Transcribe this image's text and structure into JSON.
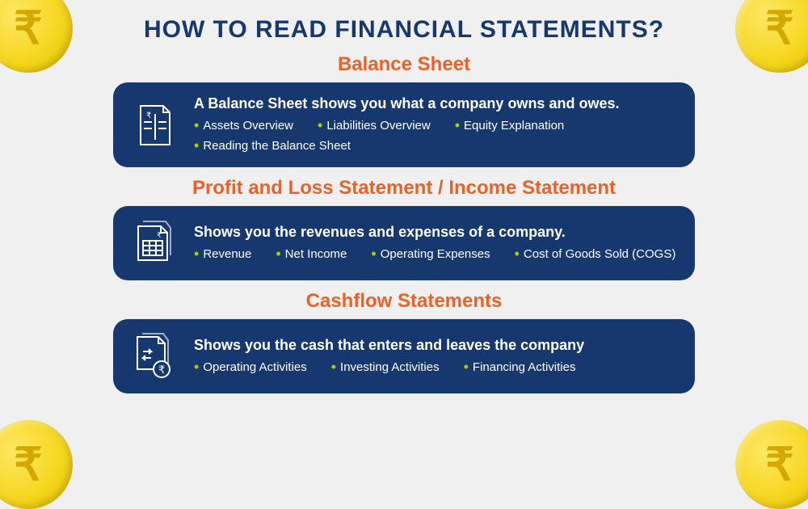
{
  "title": "HOW TO READ FINANCIAL STATEMENTS?",
  "colors": {
    "title_color": "#16386e",
    "section_title_color": "#ec6226",
    "card_bg": "#16386e",
    "bullet_dot_color": "#aacc00",
    "coin_symbol": "₹"
  },
  "sections": [
    {
      "title": "Balance Sheet",
      "description": "A Balance Sheet shows you what a company owns and owes.",
      "icon": "balance-sheet-document-icon",
      "bullets": [
        "Assets Overview",
        "Liabilities Overview",
        "Equity Explanation",
        "Reading the Balance Sheet"
      ]
    },
    {
      "title": "Profit and Loss Statement / Income Statement",
      "description": "Shows you the revenues and expenses of a company.",
      "icon": "income-statement-spreadsheet-icon",
      "bullets": [
        "Revenue",
        "Net Income",
        "Operating Expenses",
        "Cost of Goods Sold (COGS)"
      ]
    },
    {
      "title": "Cashflow Statements",
      "description": "Shows you the cash that enters and leaves the company",
      "icon": "cashflow-document-icon",
      "bullets": [
        "Operating Activities",
        "Investing Activities",
        "Financing Activities"
      ]
    }
  ]
}
